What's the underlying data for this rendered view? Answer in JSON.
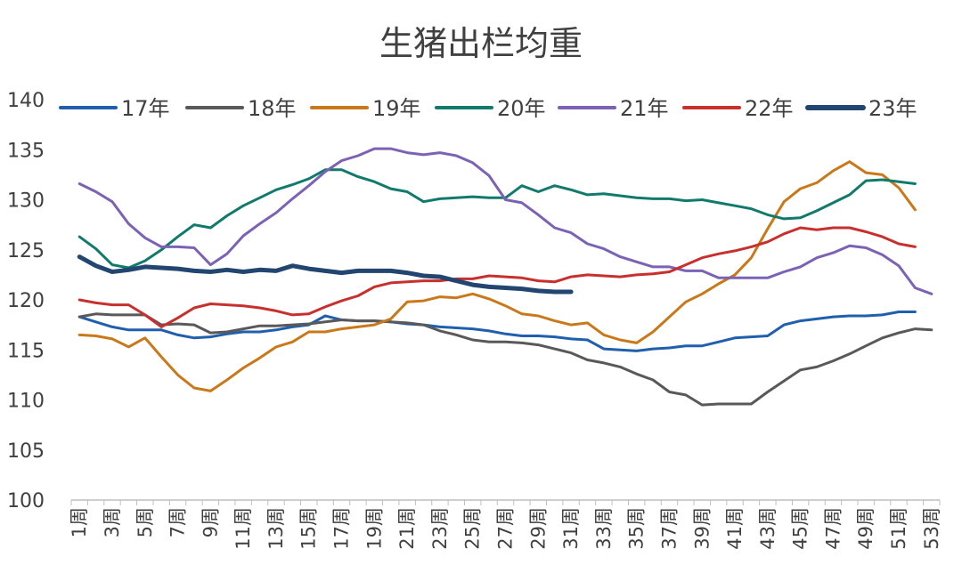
{
  "chart_data": {
    "type": "line",
    "title": "生猪出栏均重",
    "xlabel": "",
    "ylabel": "",
    "ylim": [
      100,
      140
    ],
    "yticks": [
      "100",
      "105",
      "110",
      "115",
      "120",
      "125",
      "130",
      "135",
      "140"
    ],
    "xticks": [
      "1周",
      "3周",
      "5周",
      "7周",
      "9周",
      "11周",
      "13周",
      "15周",
      "17周",
      "19周",
      "21周",
      "23周",
      "25周",
      "27周",
      "29周",
      "31周",
      "33周",
      "35周",
      "37周",
      "39周",
      "41周",
      "43周",
      "45周",
      "47周",
      "49周",
      "51周",
      "53周"
    ],
    "weeks": 53,
    "grid": false,
    "legend_position": "top",
    "series": [
      {
        "name": "17年",
        "color": "#1F5FAD",
        "width": 3,
        "values": [
          118.3,
          117.8,
          117.3,
          117.0,
          117.0,
          117.0,
          116.5,
          116.2,
          116.3,
          116.6,
          116.8,
          116.8,
          117.0,
          117.3,
          117.5,
          118.4,
          118.0,
          117.9,
          117.9,
          117.8,
          117.6,
          117.5,
          117.3,
          117.2,
          117.1,
          116.9,
          116.6,
          116.4,
          116.4,
          116.3,
          116.1,
          116.0,
          115.1,
          115.0,
          114.9,
          115.1,
          115.2,
          115.4,
          115.4,
          115.8,
          116.2,
          116.3,
          116.4,
          117.5,
          117.9,
          118.1,
          118.3,
          118.4,
          118.4,
          118.5,
          118.8,
          118.8
        ]
      },
      {
        "name": "18年",
        "color": "#595959",
        "width": 3,
        "values": [
          118.3,
          118.6,
          118.5,
          118.5,
          118.5,
          117.5,
          117.6,
          117.5,
          116.7,
          116.8,
          117.1,
          117.4,
          117.4,
          117.5,
          117.6,
          117.8,
          118.0,
          117.9,
          117.9,
          117.8,
          117.7,
          117.5,
          116.9,
          116.5,
          116.0,
          115.8,
          115.8,
          115.7,
          115.5,
          115.1,
          114.7,
          114.0,
          113.7,
          113.3,
          112.6,
          112.0,
          110.8,
          110.5,
          109.5,
          109.6,
          109.6,
          109.6,
          110.8,
          111.9,
          113.0,
          113.3,
          113.9,
          114.6,
          115.4,
          116.2,
          116.7,
          117.1,
          117.0
        ]
      },
      {
        "name": "19年",
        "color": "#C9781A",
        "width": 3,
        "values": [
          116.5,
          116.4,
          116.1,
          115.3,
          116.2,
          114.3,
          112.5,
          111.2,
          110.9,
          112.0,
          113.2,
          114.2,
          115.3,
          115.8,
          116.8,
          116.8,
          117.1,
          117.3,
          117.5,
          118.1,
          119.8,
          119.9,
          120.3,
          120.2,
          120.6,
          120.1,
          119.4,
          118.6,
          118.4,
          117.9,
          117.5,
          117.7,
          116.5,
          116.0,
          115.7,
          116.8,
          118.3,
          119.8,
          120.6,
          121.6,
          122.5,
          124.2,
          127.1,
          129.8,
          131.1,
          131.7,
          132.9,
          133.8,
          132.7,
          132.5,
          131.2,
          129.0
        ]
      },
      {
        "name": "20年",
        "color": "#117A6D",
        "width": 3,
        "values": [
          126.3,
          125.1,
          123.5,
          123.2,
          123.9,
          125.0,
          126.3,
          127.5,
          127.2,
          128.4,
          129.4,
          130.2,
          131.0,
          131.5,
          132.1,
          133.0,
          133.0,
          132.3,
          131.8,
          131.1,
          130.8,
          129.8,
          130.1,
          130.2,
          130.3,
          130.2,
          130.2,
          131.4,
          130.8,
          131.4,
          131.0,
          130.5,
          130.6,
          130.4,
          130.2,
          130.1,
          130.1,
          129.9,
          130.0,
          129.7,
          129.4,
          129.1,
          128.5,
          128.1,
          128.2,
          128.9,
          129.7,
          130.5,
          131.9,
          132.0,
          131.8,
          131.6
        ]
      },
      {
        "name": "21年",
        "color": "#7B62B5",
        "width": 3,
        "values": [
          131.6,
          130.8,
          129.8,
          127.6,
          126.2,
          125.3,
          125.3,
          125.2,
          123.5,
          124.6,
          126.4,
          127.6,
          128.7,
          130.1,
          131.4,
          132.8,
          133.9,
          134.4,
          135.1,
          135.1,
          134.7,
          134.5,
          134.7,
          134.4,
          133.7,
          132.4,
          130.0,
          129.7,
          128.5,
          127.2,
          126.7,
          125.6,
          125.1,
          124.3,
          123.8,
          123.3,
          123.3,
          122.9,
          122.9,
          122.2,
          122.2,
          122.2,
          122.2,
          122.8,
          123.3,
          124.2,
          124.7,
          125.4,
          125.2,
          124.5,
          123.4,
          121.2,
          120.6
        ]
      },
      {
        "name": "22年",
        "color": "#C8302E",
        "width": 3,
        "values": [
          120.0,
          119.7,
          119.5,
          119.5,
          118.5,
          117.3,
          118.2,
          119.2,
          119.6,
          119.5,
          119.4,
          119.2,
          118.9,
          118.5,
          118.6,
          119.3,
          119.9,
          120.4,
          121.3,
          121.7,
          121.8,
          121.9,
          121.9,
          122.1,
          122.1,
          122.4,
          122.3,
          122.2,
          121.9,
          121.8,
          122.3,
          122.5,
          122.4,
          122.3,
          122.5,
          122.6,
          122.8,
          123.5,
          124.2,
          124.6,
          124.9,
          125.3,
          125.8,
          126.6,
          127.2,
          127.0,
          127.2,
          127.2,
          126.8,
          126.3,
          125.6,
          125.3
        ]
      },
      {
        "name": "23年",
        "color": "#22466F",
        "width": 5,
        "values": [
          124.3,
          123.4,
          122.8,
          123.0,
          123.3,
          123.2,
          123.1,
          122.9,
          122.8,
          123.0,
          122.8,
          123.0,
          122.9,
          123.4,
          123.1,
          122.9,
          122.7,
          122.9,
          122.9,
          122.9,
          122.7,
          122.4,
          122.3,
          121.9,
          121.5,
          121.3,
          121.2,
          121.1,
          120.9,
          120.8,
          120.8
        ]
      }
    ]
  }
}
